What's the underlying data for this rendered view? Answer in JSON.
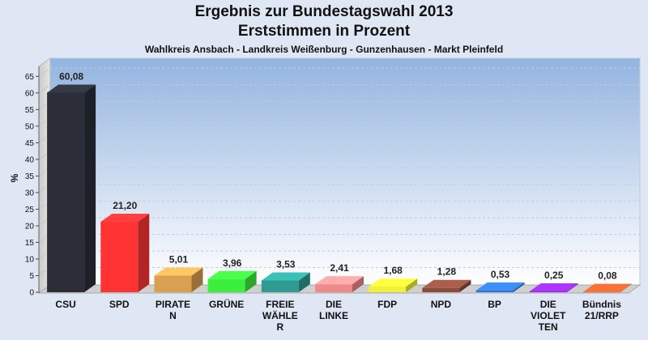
{
  "chart_data": {
    "type": "bar",
    "title": "Ergebnis zur Bundestagswahl 2013",
    "subtitle": "Erststimmen in Prozent",
    "subtitle2": "Wahlkreis Ansbach - Landkreis Weißenburg - Gunzenhausen - Markt Pleinfeld",
    "ylabel": "%",
    "ylim": [
      0,
      68
    ],
    "yticks": [
      0,
      5,
      10,
      15,
      20,
      25,
      30,
      35,
      40,
      45,
      50,
      55,
      60,
      65
    ],
    "categories": [
      [
        "CSU"
      ],
      [
        "SPD"
      ],
      [
        "PIRATE",
        "N"
      ],
      [
        "GRÜNE"
      ],
      [
        "FREIE",
        "WÄHLE",
        "R"
      ],
      [
        "DIE",
        "LINKE"
      ],
      [
        "FDP"
      ],
      [
        "NPD"
      ],
      [
        "BP"
      ],
      [
        "DIE",
        "VIOLET",
        "TEN"
      ],
      [
        "Bündnis",
        "21/RRP"
      ]
    ],
    "values": [
      60.08,
      21.2,
      5.01,
      3.96,
      3.53,
      2.41,
      1.68,
      1.28,
      0.53,
      0.25,
      0.08
    ],
    "value_labels": [
      "60,08",
      "21,20",
      "5,01",
      "3,96",
      "3,53",
      "2,41",
      "1,68",
      "1,28",
      "0,53",
      "0,25",
      "0,08"
    ],
    "colors": [
      "#2b2e38",
      "#ff3333",
      "#d9a050",
      "#3bf03b",
      "#2f9a92",
      "#f08a8a",
      "#f2f234",
      "#8a4a3c",
      "#2f72cc",
      "#8a2acc",
      "#c85a2a"
    ]
  }
}
